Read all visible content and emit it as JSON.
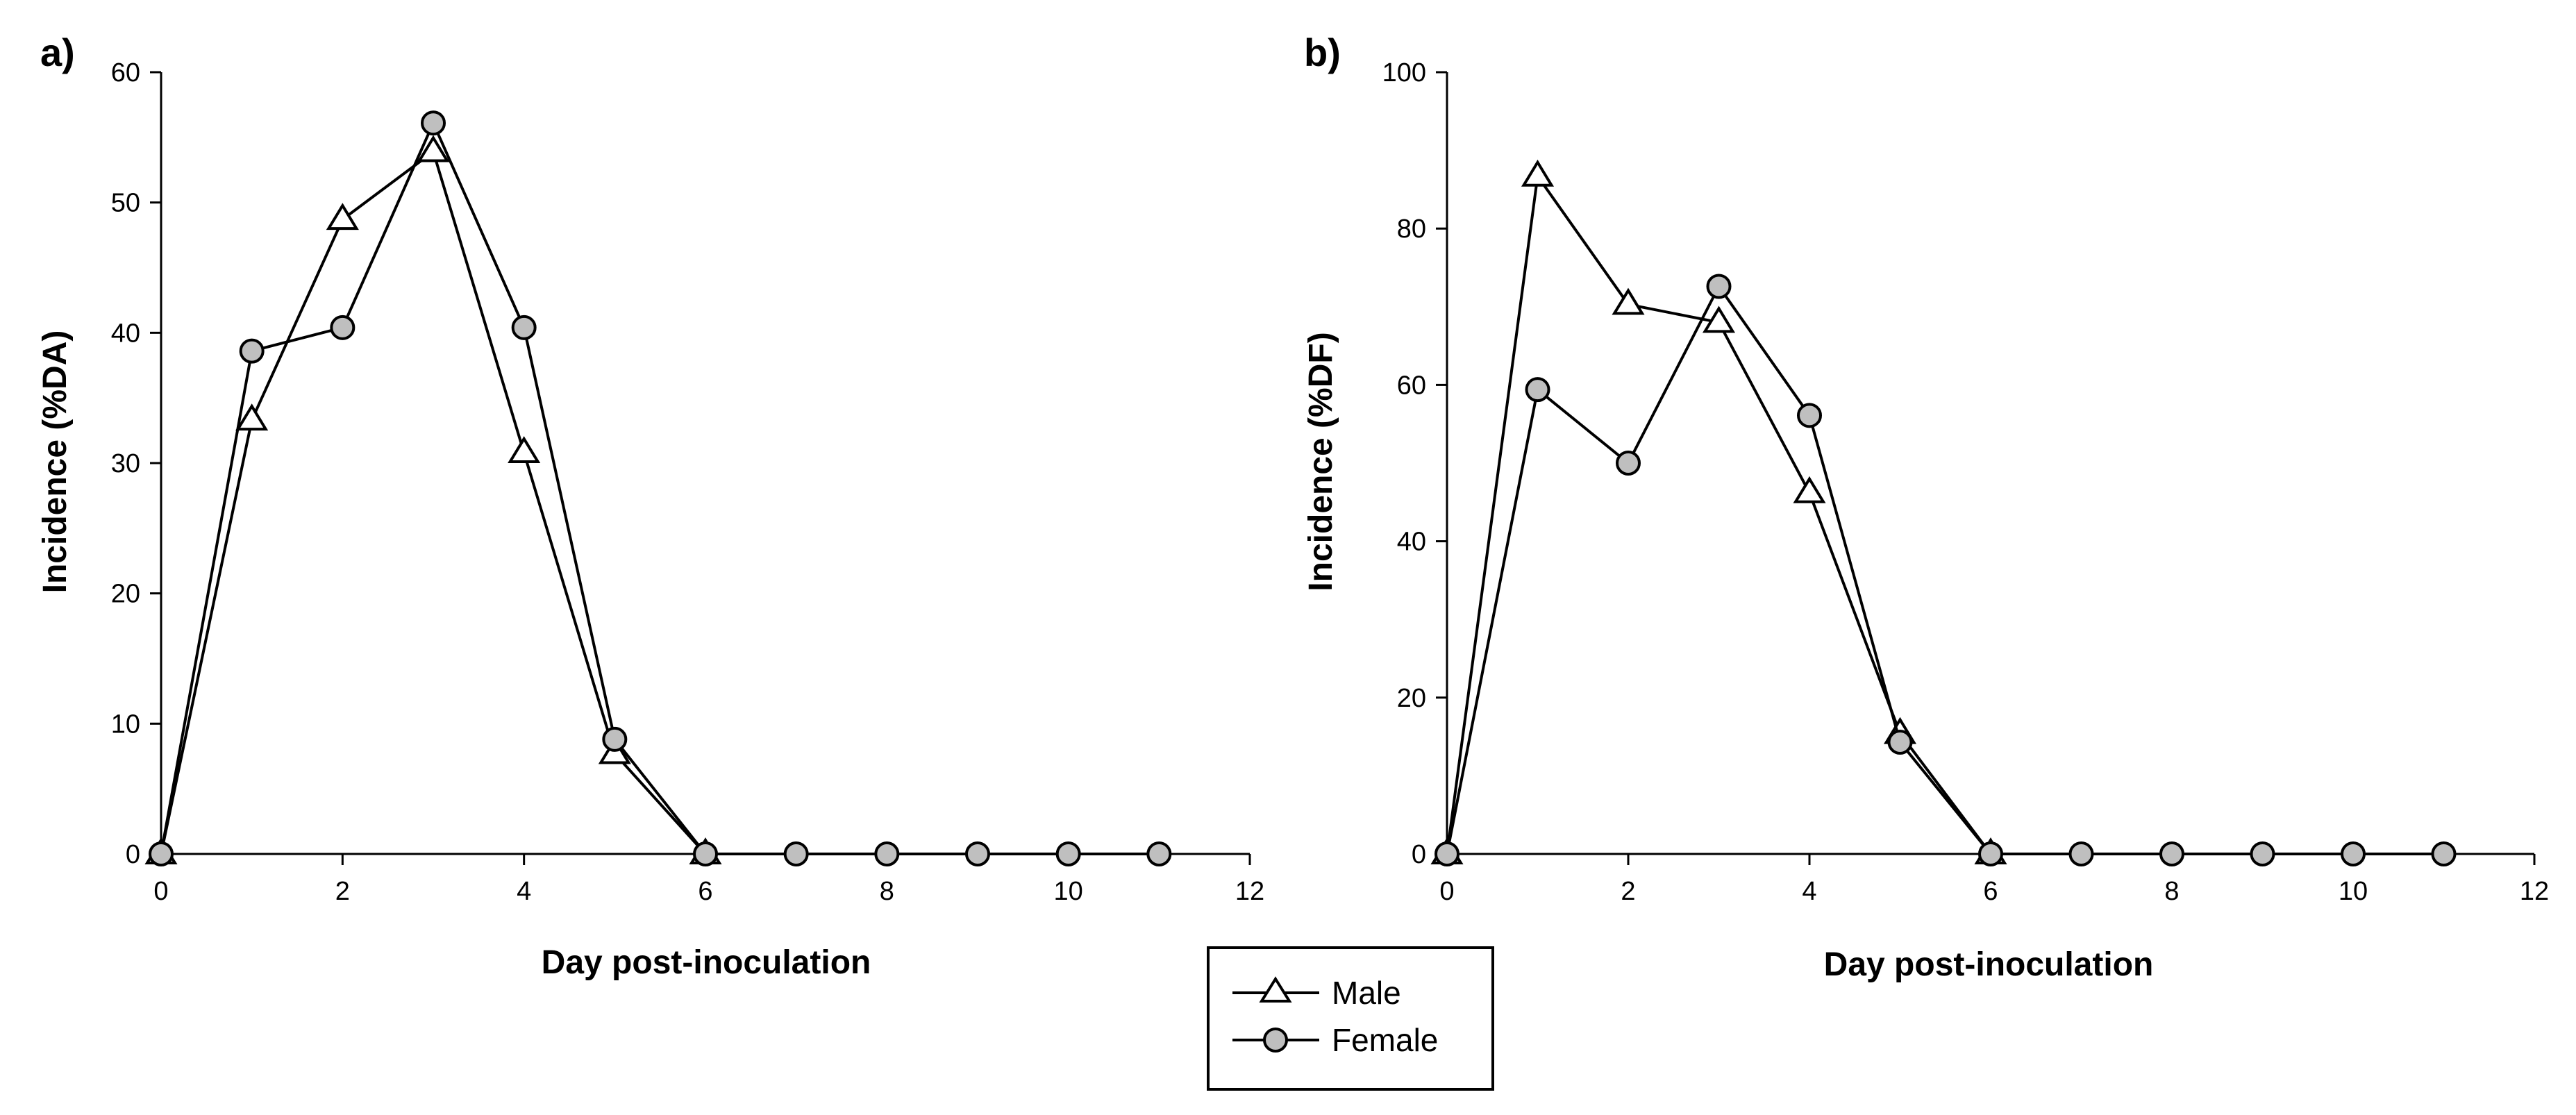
{
  "chart_data": [
    {
      "type": "line",
      "panel_label": "a)",
      "xlabel": "Day post-inoculation",
      "ylabel": "Incidence (%DA)",
      "xlim": [
        0,
        12
      ],
      "ylim": [
        0,
        60
      ],
      "x_ticks": [
        0,
        2,
        4,
        6,
        8,
        10,
        12
      ],
      "y_ticks": [
        0,
        10,
        20,
        30,
        40,
        50,
        60
      ],
      "series": [
        {
          "name": "Male",
          "marker": "open-triangle",
          "x": [
            0,
            1,
            2,
            3,
            4,
            5,
            6
          ],
          "values": [
            0,
            33.3,
            48.7,
            53.9,
            30.8,
            7.7,
            0
          ]
        },
        {
          "name": "Female",
          "marker": "gray-circle",
          "x": [
            0,
            1,
            2,
            3,
            4,
            5,
            6,
            7,
            8,
            9,
            10,
            11
          ],
          "values": [
            0,
            38.6,
            40.4,
            56.1,
            40.4,
            8.8,
            0,
            0,
            0,
            0,
            0,
            0
          ]
        }
      ]
    },
    {
      "type": "line",
      "panel_label": "b)",
      "xlabel": "Day post-inoculation",
      "ylabel": "Incidence (%DF)",
      "xlim": [
        0,
        12
      ],
      "ylim": [
        0,
        100
      ],
      "x_ticks": [
        0,
        2,
        4,
        6,
        8,
        10,
        12
      ],
      "y_ticks": [
        0,
        20,
        40,
        60,
        80,
        100
      ],
      "series": [
        {
          "name": "Male",
          "marker": "open-triangle",
          "x": [
            0,
            1,
            2,
            3,
            4,
            5,
            6
          ],
          "values": [
            0,
            86.7,
            70.3,
            68.0,
            46.2,
            15.4,
            0
          ]
        },
        {
          "name": "Female",
          "marker": "gray-circle",
          "x": [
            0,
            1,
            2,
            3,
            4,
            5,
            6,
            7,
            8,
            9,
            10,
            11
          ],
          "values": [
            0,
            59.4,
            50.0,
            72.6,
            56.1,
            14.3,
            0,
            0,
            0,
            0,
            0,
            0
          ]
        }
      ]
    }
  ],
  "legend": {
    "entries": [
      {
        "label": "Male",
        "marker": "open-triangle"
      },
      {
        "label": "Female",
        "marker": "gray-circle"
      }
    ]
  },
  "colors": {
    "line": "#000000",
    "female_fill": "#bfbfbf",
    "male_fill": "#ffffff",
    "background": "#ffffff"
  }
}
